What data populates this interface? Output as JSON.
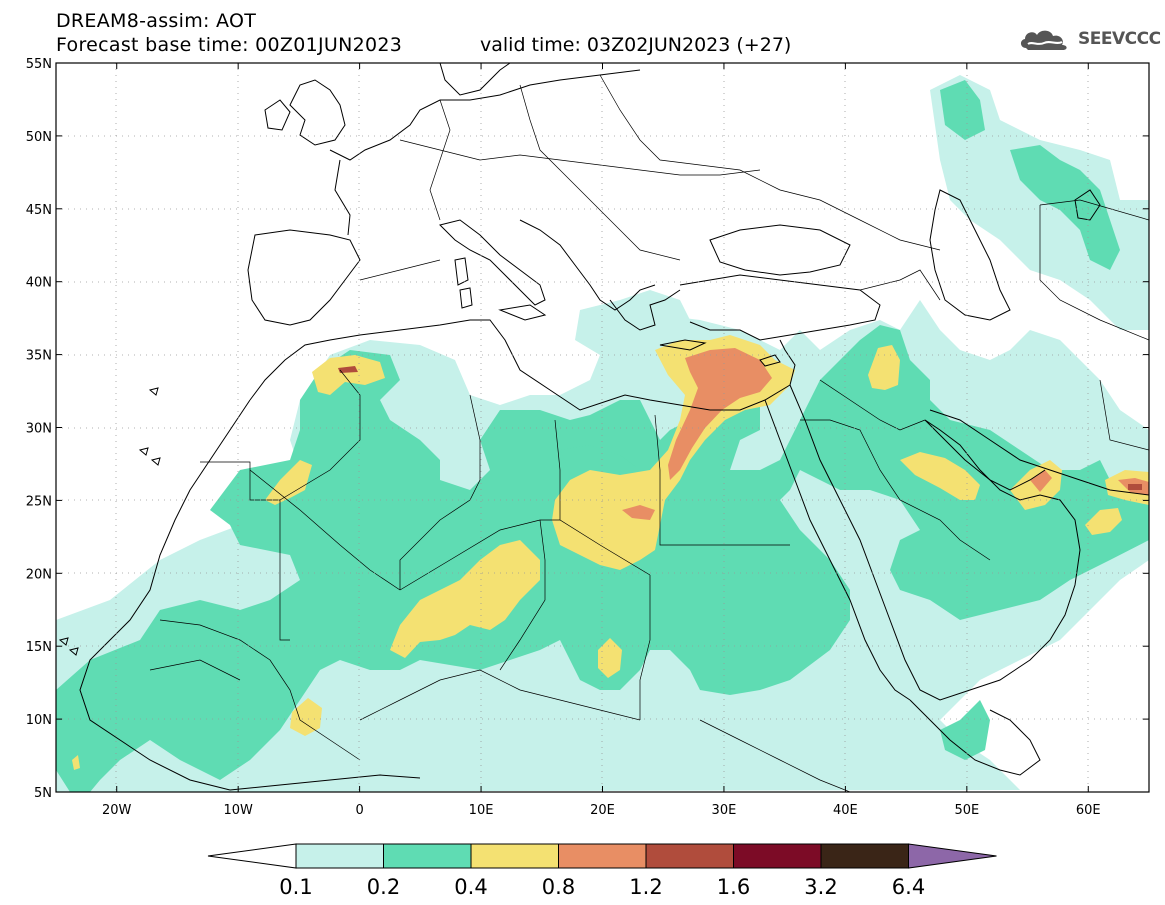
{
  "header": {
    "title": "DREAM8-assim: AOT",
    "base_time": "Forecast base time: 00Z01JUN2023",
    "valid_time": "valid time: 03Z02JUN2023 (+27)"
  },
  "logo": {
    "text": "SEEVCCC",
    "icon": "cloud-icon"
  },
  "map": {
    "lon_range": [
      -25,
      65
    ],
    "lat_range": [
      5,
      55
    ],
    "lat_labels": [
      "55N",
      "50N",
      "45N",
      "40N",
      "35N",
      "30N",
      "25N",
      "20N",
      "15N",
      "10N",
      "5N"
    ],
    "lat_values": [
      55,
      50,
      45,
      40,
      35,
      30,
      25,
      20,
      15,
      10,
      5
    ],
    "lon_labels": [
      "20W",
      "10W",
      "0",
      "10E",
      "20E",
      "30E",
      "40E",
      "50E",
      "60E"
    ],
    "lon_values": [
      -20,
      -10,
      0,
      10,
      20,
      30,
      40,
      50,
      60
    ]
  },
  "colorbar": {
    "labels": [
      "0.1",
      "0.2",
      "0.4",
      "0.8",
      "1.2",
      "1.6",
      "3.2",
      "6.4"
    ],
    "colors": [
      "#ffffff",
      "#c6f1ea",
      "#5fdcb3",
      "#f4e172",
      "#e88e64",
      "#b04c3c",
      "#7c0b26",
      "#3a2517",
      "#8d67a8"
    ]
  }
}
